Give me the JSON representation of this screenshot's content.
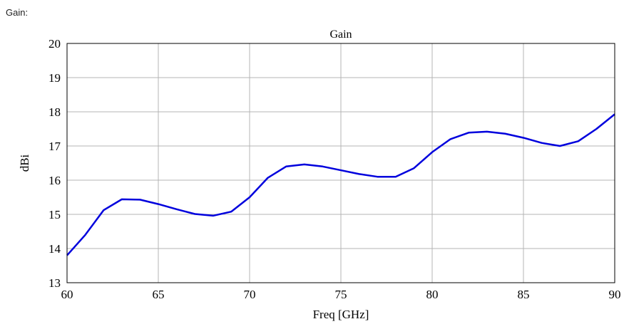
{
  "page_label": "Gain:",
  "chart_data": {
    "type": "line",
    "title": "Gain",
    "xlabel": "Freq [GHz]",
    "ylabel": "dBi",
    "xlim": [
      60,
      90
    ],
    "ylim": [
      13,
      20
    ],
    "xticks": [
      60,
      65,
      70,
      75,
      80,
      85,
      90
    ],
    "yticks": [
      13,
      14,
      15,
      16,
      17,
      18,
      19,
      20
    ],
    "grid": true,
    "line_color": "#0000dd",
    "x": [
      60,
      61,
      62,
      63,
      64,
      65,
      66,
      67,
      68,
      69,
      70,
      71,
      72,
      73,
      74,
      75,
      76,
      77,
      78,
      79,
      80,
      81,
      82,
      83,
      84,
      85,
      86,
      87,
      88,
      89,
      90
    ],
    "series": [
      {
        "values": [
          13.8,
          14.4,
          15.12,
          15.44,
          15.43,
          15.3,
          15.15,
          15.01,
          14.96,
          15.08,
          15.5,
          16.07,
          16.4,
          16.46,
          16.4,
          16.29,
          16.18,
          16.1,
          16.1,
          16.35,
          16.82,
          17.2,
          17.39,
          17.42,
          17.36,
          17.24,
          17.09,
          17.0,
          17.14,
          17.5,
          17.93
        ]
      }
    ]
  }
}
